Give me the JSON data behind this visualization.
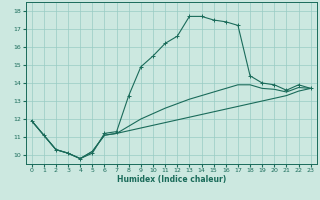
{
  "xlabel": "Humidex (Indice chaleur)",
  "bg_color": "#cce8e0",
  "grid_color": "#99ccc4",
  "line_color": "#1a6b5a",
  "xlim": [
    -0.5,
    23.5
  ],
  "ylim": [
    9.5,
    18.5
  ],
  "yticks": [
    10,
    11,
    12,
    13,
    14,
    15,
    16,
    17,
    18
  ],
  "xticks": [
    0,
    1,
    2,
    3,
    4,
    5,
    6,
    7,
    8,
    9,
    10,
    11,
    12,
    13,
    14,
    15,
    16,
    17,
    18,
    19,
    20,
    21,
    22,
    23
  ],
  "line1_x": [
    0,
    1,
    2,
    3,
    4,
    5,
    6,
    7,
    8,
    9,
    10,
    11,
    12,
    13,
    14,
    15,
    16,
    17,
    18,
    19,
    20,
    21,
    22,
    23
  ],
  "line1_y": [
    11.9,
    11.1,
    10.3,
    10.1,
    9.8,
    10.1,
    11.2,
    11.3,
    13.3,
    14.9,
    15.5,
    16.2,
    16.6,
    17.7,
    17.7,
    17.5,
    17.4,
    17.2,
    14.4,
    14.0,
    13.9,
    13.6,
    13.9,
    13.7
  ],
  "line2_x": [
    0,
    1,
    2,
    3,
    4,
    5,
    6,
    7,
    8,
    9,
    10,
    11,
    12,
    13,
    14,
    15,
    16,
    17,
    18,
    19,
    20,
    21,
    22,
    23
  ],
  "line2_y": [
    11.9,
    11.1,
    10.3,
    10.1,
    9.8,
    10.2,
    11.1,
    11.2,
    11.35,
    11.5,
    11.65,
    11.8,
    11.95,
    12.1,
    12.25,
    12.4,
    12.55,
    12.7,
    12.85,
    13.0,
    13.15,
    13.3,
    13.55,
    13.7
  ],
  "line3_x": [
    0,
    1,
    2,
    3,
    4,
    5,
    6,
    7,
    8,
    9,
    10,
    11,
    12,
    13,
    14,
    15,
    16,
    17,
    18,
    19,
    20,
    21,
    22,
    23
  ],
  "line3_y": [
    11.9,
    11.1,
    10.3,
    10.1,
    9.8,
    10.2,
    11.1,
    11.2,
    11.6,
    12.0,
    12.3,
    12.6,
    12.85,
    13.1,
    13.3,
    13.5,
    13.7,
    13.9,
    13.9,
    13.7,
    13.65,
    13.5,
    13.75,
    13.7
  ]
}
